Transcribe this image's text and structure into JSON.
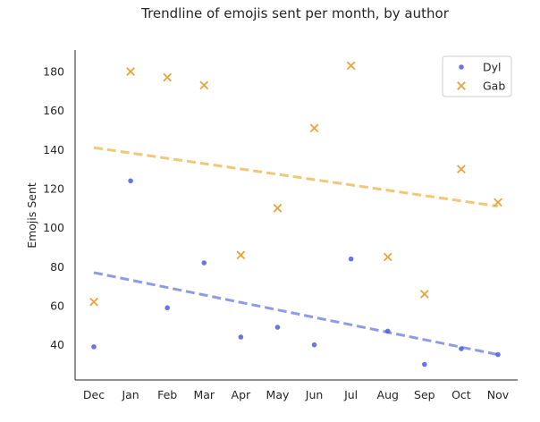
{
  "chart_data": {
    "type": "scatter",
    "title": "Trendline of emojis sent per month, by author",
    "xlabel": "",
    "ylabel": "Emojis Sent",
    "categories": [
      "Dec",
      "Jan",
      "Feb",
      "Mar",
      "Apr",
      "May",
      "Jun",
      "Jul",
      "Aug",
      "Sep",
      "Oct",
      "Nov"
    ],
    "ylim": [
      22,
      191
    ],
    "yticks": [
      40,
      60,
      80,
      100,
      120,
      140,
      160,
      180
    ],
    "grid": false,
    "legend_position": "top-right",
    "series": [
      {
        "name": "Dyl",
        "marker": "circle",
        "color": "#4c5fd7",
        "values": [
          39,
          124,
          59,
          82,
          44,
          49,
          40,
          84,
          47,
          30,
          38,
          35
        ],
        "trendline": {
          "color": "#8e9be8",
          "start": 77,
          "end": 35
        }
      },
      {
        "name": "Gab",
        "marker": "x",
        "color": "#e8a33a",
        "values": [
          62,
          180,
          177,
          173,
          86,
          110,
          151,
          183,
          85,
          66,
          130,
          113
        ],
        "trendline": {
          "color": "#f0c878",
          "start": 141,
          "end": 111
        }
      }
    ]
  }
}
